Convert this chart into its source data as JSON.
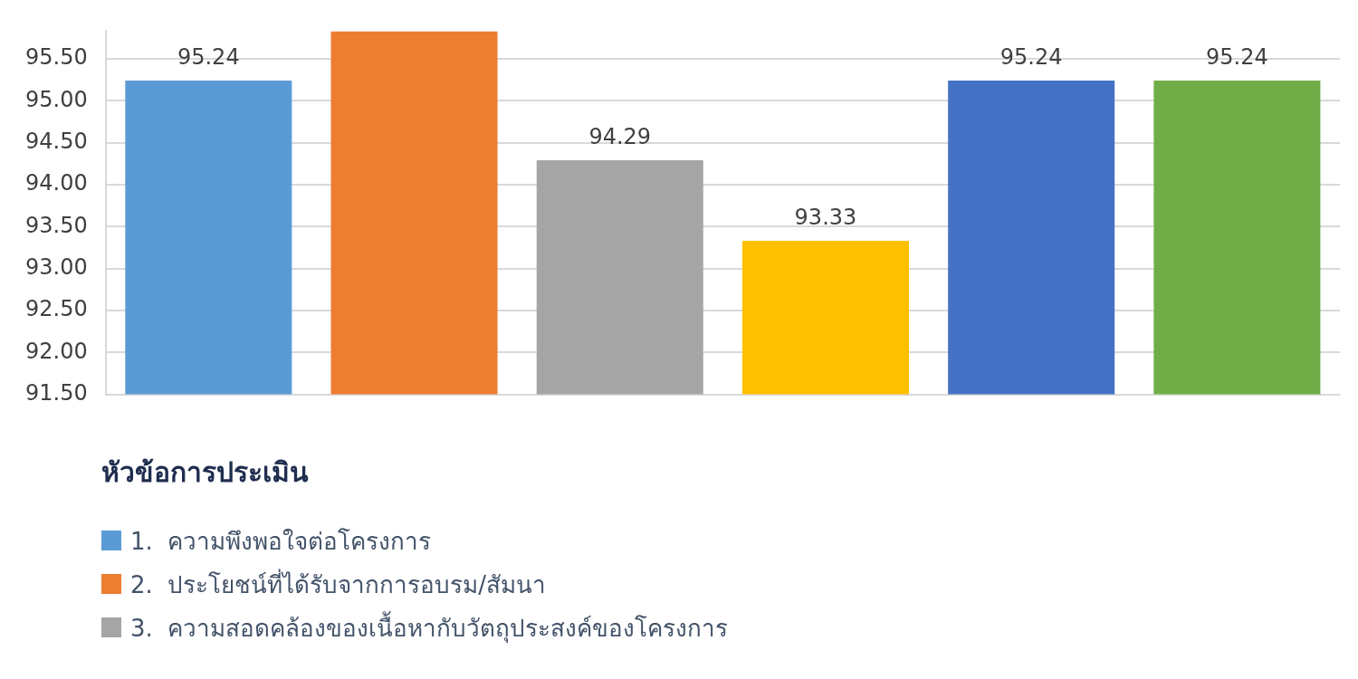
{
  "chart_data": {
    "type": "bar",
    "legend_title": "หัวข้อการประเมิน",
    "categories": [
      null,
      null,
      null,
      null,
      null,
      null
    ],
    "series": [
      {
        "name": "1.  ความพึงพอใจต่อโครงการ",
        "color": "#5b9bd5",
        "values": [
          95.24,
          null,
          null,
          null,
          null,
          null
        ],
        "value_labels": [
          "95.24",
          null,
          null,
          null,
          null,
          null
        ]
      },
      {
        "name": "2.  ประโยชน์ที่ได้รับจากการอบรม/สัมนา",
        "color": "#ed7d31",
        "values": [
          null,
          95.83,
          null,
          null,
          null,
          null
        ]
      },
      {
        "name": "3.  ความสอดคล้องของเนื้อหากับวัตถุประสงค์ของโครงการ",
        "color": "#a5a5a5",
        "values": [
          null,
          null,
          94.29,
          null,
          null,
          null
        ],
        "value_labels": [
          null,
          null,
          "94.29",
          null,
          null,
          null
        ]
      },
      {
        "color": "#ffc000",
        "values": [
          null,
          null,
          null,
          93.33,
          null,
          null
        ],
        "value_labels": [
          null,
          null,
          null,
          "93.33",
          null,
          null
        ]
      },
      {
        "color": "#4472c4",
        "values": [
          null,
          null,
          null,
          null,
          95.24,
          null
        ],
        "value_labels": [
          null,
          null,
          null,
          null,
          "95.24",
          null
        ]
      },
      {
        "color": "#70ad47",
        "values": [
          null,
          null,
          null,
          null,
          null,
          95.24
        ],
        "value_labels": [
          null,
          null,
          null,
          null,
          null,
          "95.24"
        ]
      }
    ],
    "ylim": [
      91.5,
      95.83
    ],
    "yticks": [
      {
        "value": 91.5,
        "label": "91.50"
      },
      {
        "value": 92,
        "label": "92.00"
      },
      {
        "value": 92.5,
        "label": "92.50"
      },
      {
        "value": 93,
        "label": "93.00"
      },
      {
        "value": 93.5,
        "label": "93.50"
      },
      {
        "value": 94,
        "label": "94.00"
      },
      {
        "value": 94.5,
        "label": "94.50"
      },
      {
        "value": 95,
        "label": "95.00"
      },
      {
        "value": 95.5,
        "label": "95.50"
      }
    ],
    "grid": "y",
    "legend": "bottom"
  }
}
